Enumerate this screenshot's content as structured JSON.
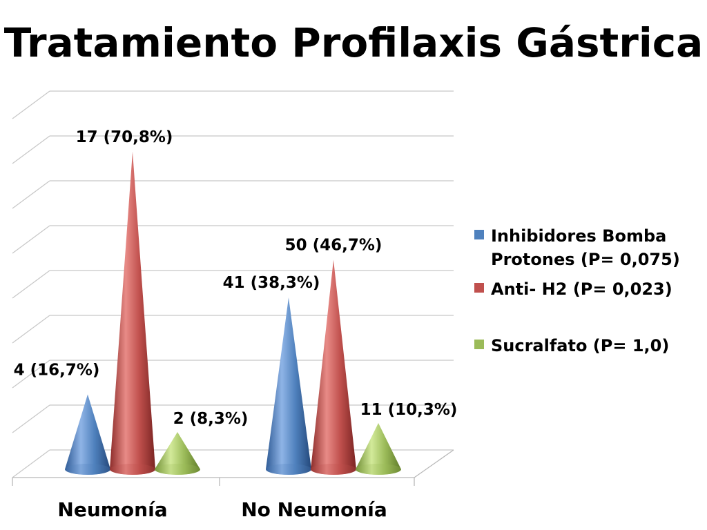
{
  "chart_data": {
    "type": "bar",
    "shape": "cone-3d",
    "title": "Tratamiento Profilaxis Gástrica",
    "categories": [
      "Neumonía",
      "No Neumonía"
    ],
    "series": [
      {
        "name": "Inhibidores Bomba Protones (P= 0,075)",
        "legend_lines": [
          "Inhibidores Bomba",
          "Protones (P= 0,075)"
        ],
        "color": "#4F81BD",
        "values": [
          16.7,
          38.3
        ],
        "labels": [
          "4 (16,7%)",
          "41 (38,3%)"
        ]
      },
      {
        "name": "Anti- H2 (P= 0,023)",
        "legend_lines": [
          "Anti- H2 (P= 0,023)"
        ],
        "color": "#C0504D",
        "values": [
          70.8,
          46.7
        ],
        "labels": [
          "17 (70,8%)",
          "50 (46,7%)"
        ]
      },
      {
        "name": "Sucralfato (P= 1,0)",
        "legend_lines": [
          "Sucralfato (P= 1,0)"
        ],
        "color": "#9BBB59",
        "values": [
          8.3,
          10.3
        ],
        "labels": [
          "2 (8,3%)",
          "11 (10,3%)"
        ]
      }
    ],
    "ylim": [
      0,
      80
    ],
    "grid": true,
    "legend": "right",
    "xlabel": "",
    "ylabel": ""
  }
}
